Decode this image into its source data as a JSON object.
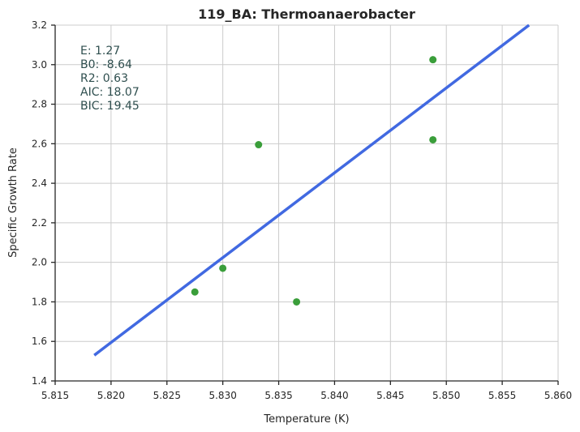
{
  "chart_data": {
    "type": "scatter",
    "title": "119_BA: Thermoanaerobacter",
    "xlabel": "Temperature (K)",
    "ylabel": "Specific Growth Rate",
    "xlim": [
      5.815,
      5.86
    ],
    "ylim": [
      1.4,
      3.2
    ],
    "x_ticks": [
      "5.815",
      "5.820",
      "5.825",
      "5.830",
      "5.835",
      "5.840",
      "5.845",
      "5.850",
      "5.855",
      "5.860"
    ],
    "y_ticks": [
      "1.4",
      "1.6",
      "1.8",
      "2.0",
      "2.2",
      "2.4",
      "2.6",
      "2.8",
      "3.0",
      "3.2"
    ],
    "grid": true,
    "points": [
      {
        "x": 5.8275,
        "y": 1.85
      },
      {
        "x": 5.83,
        "y": 1.97
      },
      {
        "x": 5.8332,
        "y": 2.595
      },
      {
        "x": 5.8366,
        "y": 1.8
      },
      {
        "x": 5.8488,
        "y": 3.025
      },
      {
        "x": 5.8488,
        "y": 2.62
      }
    ],
    "fit_line": {
      "x": [
        5.8185,
        5.8574
      ],
      "y": [
        1.53,
        3.2
      ]
    },
    "point_color": "#3a9e3a",
    "line_color": "#4169e1",
    "stats_lines": [
      "E:  1.27",
      "B0:  -8.64",
      "R2:  0.63",
      "AIC: 18.07",
      "BIC: 19.45"
    ]
  }
}
